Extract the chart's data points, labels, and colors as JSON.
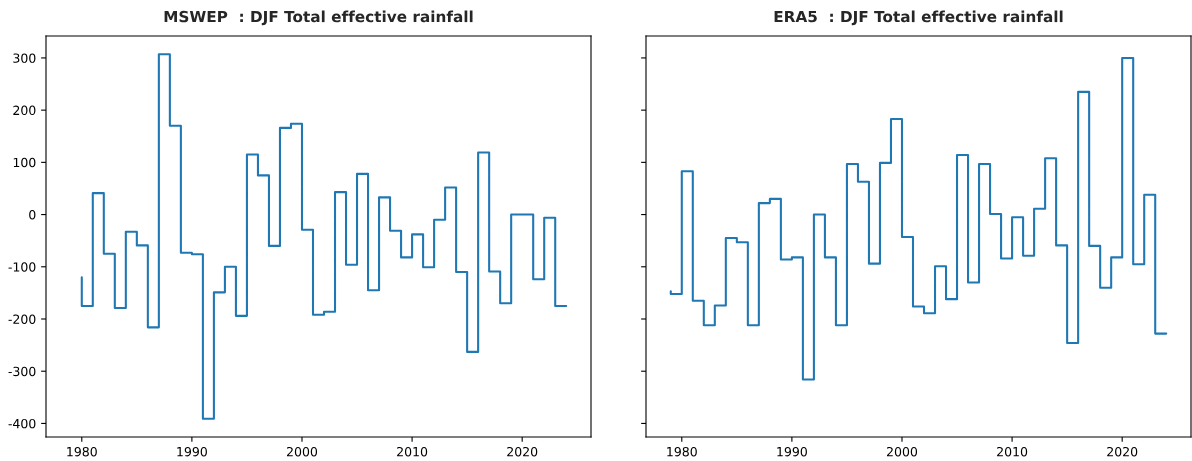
{
  "chart_data": [
    {
      "type": "step",
      "title": "MSWEP  : DJF Total effective rainfall",
      "color": "#1f77b4",
      "x": [
        1980,
        1981,
        1982,
        1983,
        1984,
        1985,
        1986,
        1987,
        1988,
        1989,
        1990,
        1991,
        1992,
        1993,
        1994,
        1995,
        1996,
        1997,
        1998,
        1999,
        2000,
        2001,
        2002,
        2003,
        2004,
        2005,
        2006,
        2007,
        2008,
        2009,
        2010,
        2011,
        2012,
        2013,
        2014,
        2015,
        2016,
        2017,
        2018,
        2019,
        2020,
        2021,
        2022,
        2023,
        2024
      ],
      "values": [
        -120,
        -175,
        41,
        -75,
        -179,
        -33,
        -59,
        -216,
        307,
        170,
        -73,
        -76,
        -391,
        -149,
        -100,
        -194,
        115,
        75,
        -60,
        166,
        174,
        -29,
        -192,
        -186,
        43,
        -96,
        78,
        -145,
        33,
        -31,
        -82,
        -38,
        -101,
        -10,
        52,
        -110,
        -263,
        119,
        -109,
        -170,
        0,
        0,
        -124,
        -6,
        -175
      ],
      "xlim": [
        1976.75,
        2026.25
      ],
      "ylim": [
        -426,
        342
      ],
      "xticks": [
        1980,
        1990,
        2000,
        2010,
        2020
      ],
      "yticks": [
        -400,
        -300,
        -200,
        -100,
        0,
        100,
        200,
        300
      ],
      "grid": false,
      "legend": false
    },
    {
      "type": "step",
      "title": "ERA5  : DJF Total effective rainfall",
      "color": "#1f77b4",
      "x": [
        1979,
        1980,
        1981,
        1982,
        1983,
        1984,
        1985,
        1986,
        1987,
        1988,
        1989,
        1990,
        1991,
        1992,
        1993,
        1994,
        1995,
        1996,
        1997,
        1998,
        1999,
        2000,
        2001,
        2002,
        2003,
        2004,
        2005,
        2006,
        2007,
        2008,
        2009,
        2010,
        2011,
        2012,
        2013,
        2014,
        2015,
        2016,
        2017,
        2018,
        2019,
        2020,
        2021,
        2022,
        2023,
        2024
      ],
      "values": [
        -147,
        -152,
        83,
        -165,
        -212,
        -174,
        -45,
        -53,
        -212,
        22,
        30,
        -86,
        -82,
        -316,
        0,
        -82,
        -212,
        97,
        63,
        -94,
        99,
        183,
        -43,
        -176,
        -189,
        -99,
        -162,
        114,
        -130,
        97,
        1,
        -84,
        -5,
        -79,
        11,
        108,
        -59,
        -246,
        235,
        -60,
        -140,
        -82,
        300,
        -95,
        38,
        -228
      ],
      "xlim": [
        1976.75,
        2026.25
      ],
      "ylim": [
        -426,
        342
      ],
      "xticks": [
        1980,
        1990,
        2000,
        2010,
        2020
      ],
      "yticks": [
        -400,
        -300,
        -200,
        -100,
        0,
        100,
        200,
        300
      ],
      "tick_labels": "x",
      "grid": false,
      "legend": false
    }
  ]
}
